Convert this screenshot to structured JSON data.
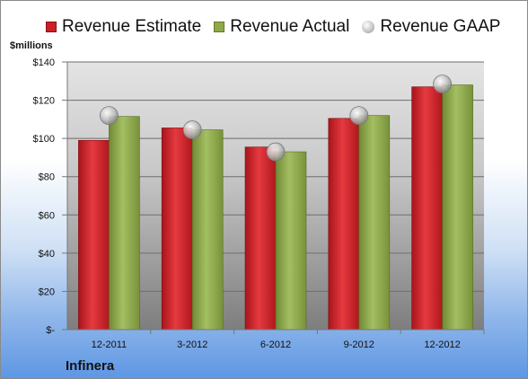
{
  "chart_data": {
    "type": "bar",
    "units_label": "$millions",
    "company": "Infinera",
    "categories": [
      "12-2011",
      "3-2012",
      "6-2012",
      "9-2012",
      "12-2012"
    ],
    "series": [
      {
        "name": "Revenue Estimate",
        "kind": "bar",
        "color": "#cc1f27",
        "values": [
          99,
          105.5,
          95.5,
          110.5,
          127
        ]
      },
      {
        "name": "Revenue Actual",
        "kind": "bar",
        "color": "#8ea94b",
        "values": [
          111.5,
          104.5,
          93,
          112,
          128
        ]
      },
      {
        "name": "Revenue GAAP",
        "kind": "marker",
        "color": "#c9c9c9",
        "values": [
          112,
          104.5,
          93,
          112,
          128.5
        ]
      }
    ],
    "ylim": [
      0,
      140
    ],
    "yticks": [
      0,
      20,
      40,
      60,
      80,
      100,
      120,
      140
    ],
    "ytick_labels": [
      "$-",
      "$20",
      "$40",
      "$60",
      "$80",
      "$100",
      "$120",
      "$140"
    ],
    "grid": true,
    "legend_position": "top"
  }
}
